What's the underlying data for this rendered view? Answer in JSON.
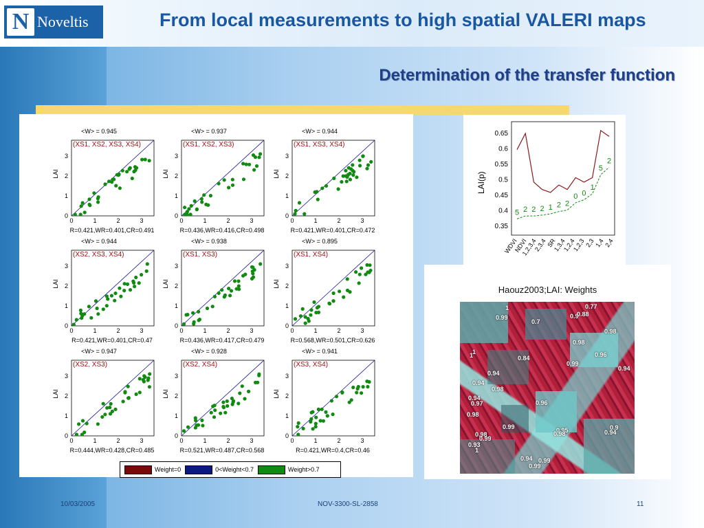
{
  "header": {
    "logo_text": "Noveltis",
    "title": "From local measurements to high spatial VALERI maps",
    "subtitle": "Determination of the transfer function"
  },
  "plots": [
    {
      "w": "<W> = 0.945",
      "comb": "(XS1, XS2, XS3, XS4)",
      "r": "R=0.421,WR=0.401,CR=0.491"
    },
    {
      "w": "<W> = 0.937",
      "comb": "(XS1, XS2, XS3)",
      "r": "R=0.436,WR=0.416,CR=0.498"
    },
    {
      "w": "<W> = 0.944",
      "comb": "(XS1, XS3, XS4)",
      "r": "R=0.421,WR=0.401,CR=0.472"
    },
    {
      "w": "<W> = 0.944",
      "comb": "(XS2, XS3, XS4)",
      "r": "R=0.421,WR=0.401,CR=0.47"
    },
    {
      "w": "<W> = 0.938",
      "comb": "(XS1, XS3)",
      "r": "R=0.436,WR=0.417,CR=0.479"
    },
    {
      "w": "<W> = 0.895",
      "comb": "(XS1, XS4)",
      "r": "R=0.568,WR=0.501,CR=0.626"
    },
    {
      "w": "<W> = 0.947",
      "comb": "(XS2, XS3)",
      "r": "R=0.444,WR=0.428,CR=0.485"
    },
    {
      "w": "<W> = 0.928",
      "comb": "(XS2, XS4)",
      "r": "R=0.521,WR=0.487,CR=0.568"
    },
    {
      "w": "<W> = 0.941",
      "comb": "(XS3, XS4)",
      "r": "R=0.421,WR=0.4,CR=0.46"
    }
  ],
  "plot_axis": {
    "ylabel": "LAI",
    "xticks": [
      "0",
      "1",
      "2",
      "3"
    ],
    "yticks": [
      "0",
      "1",
      "2",
      "3"
    ]
  },
  "legend": {
    "items": [
      {
        "label": "Weight=0",
        "color": "#7a0a0a"
      },
      {
        "label": "0<Weight<0.7",
        "color": "#0a1a80"
      },
      {
        "label": "Weight>0.7",
        "color": "#108a10"
      }
    ]
  },
  "lai_chart": {
    "ylabel": "LAI(p)",
    "yticks": [
      "0.65",
      "0.6",
      "0.55",
      "0.5",
      "0.45",
      "0.4",
      "0.35"
    ],
    "xticks": [
      "WDVI",
      "NDVI",
      "1,2,3,4",
      "2,3,4",
      "SR",
      "1,3,4",
      "1,2,4",
      "1,2,3",
      "2,3",
      "1,4",
      "2,4"
    ],
    "markers": [
      "5",
      "2",
      "2",
      "2",
      "1",
      "2",
      "2",
      "0",
      "0",
      "1",
      "5",
      "2"
    ]
  },
  "map": {
    "title": "Haouz2003;LAI: Weights",
    "labels": [
      "1",
      "0.99",
      "0.7",
      "0.9",
      "0.88",
      "0.77",
      "0.98",
      "0.98",
      "1",
      "1",
      "0.84",
      "0.99",
      "0.96",
      "0.94",
      "0.94",
      "0.94",
      "0.98",
      "0.94",
      "0.97",
      "0.96",
      "0.98",
      "0.99",
      "0.95",
      "0.98",
      "0.9",
      "0.94",
      "0.98",
      "0.99",
      "0.93",
      "1",
      "0.94",
      "0.99",
      "0.99"
    ]
  },
  "footer": {
    "date": "10/03/2005",
    "ref": "NOV-3300-SL-2858",
    "page": "11"
  },
  "colors": {
    "title": "#1a57a3",
    "subtitle": "#1f3f86",
    "highlight_bar": "#f5d970",
    "points": "#108a10",
    "fit_line": "#1010a0",
    "combination_text": "#a01010"
  }
}
